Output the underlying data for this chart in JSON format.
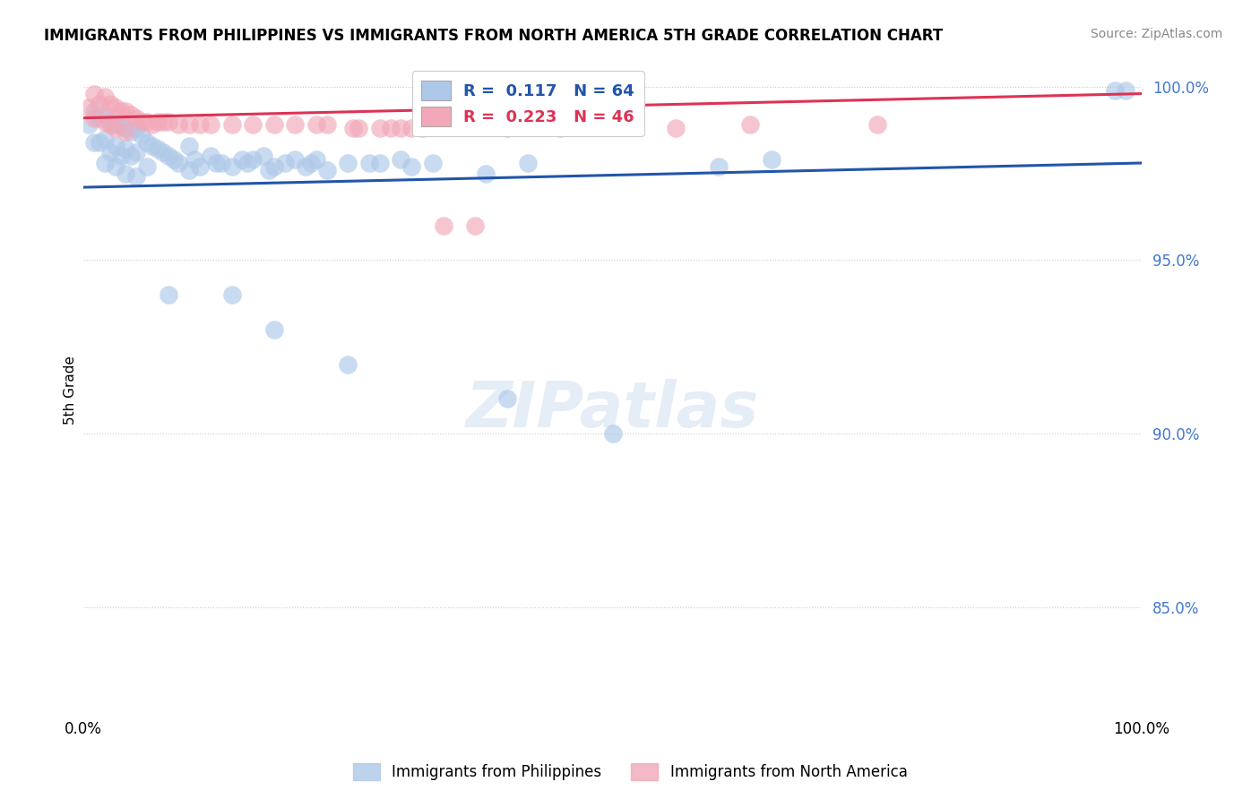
{
  "title": "IMMIGRANTS FROM PHILIPPINES VS IMMIGRANTS FROM NORTH AMERICA 5TH GRADE CORRELATION CHART",
  "source": "Source: ZipAtlas.com",
  "ylabel": "5th Grade",
  "xlim": [
    0.0,
    1.0
  ],
  "ylim": [
    0.82,
    1.005
  ],
  "yticks": [
    0.85,
    0.9,
    0.95,
    1.0
  ],
  "ytick_labels": [
    "85.0%",
    "90.0%",
    "95.0%",
    "100.0%"
  ],
  "blue_R": "0.117",
  "blue_N": "64",
  "pink_R": "0.223",
  "pink_N": "46",
  "blue_color": "#adc8e8",
  "pink_color": "#f2a8b8",
  "blue_line_color": "#2255aa",
  "pink_line_color": "#dd3355",
  "legend_blue_label": "Immigrants from Philippines",
  "legend_pink_label": "Immigrants from North America",
  "blue_scatter_x": [
    0.005,
    0.01,
    0.01,
    0.015,
    0.015,
    0.02,
    0.02,
    0.02,
    0.025,
    0.025,
    0.03,
    0.03,
    0.03,
    0.035,
    0.035,
    0.04,
    0.04,
    0.04,
    0.045,
    0.045,
    0.05,
    0.05,
    0.05,
    0.055,
    0.06,
    0.06,
    0.065,
    0.07,
    0.075,
    0.08,
    0.085,
    0.09,
    0.1,
    0.1,
    0.105,
    0.11,
    0.12,
    0.125,
    0.13,
    0.14,
    0.15,
    0.155,
    0.16,
    0.17,
    0.175,
    0.18,
    0.19,
    0.2,
    0.21,
    0.215,
    0.22,
    0.23,
    0.25,
    0.27,
    0.28,
    0.3,
    0.31,
    0.33,
    0.38,
    0.42,
    0.6,
    0.65,
    0.975,
    0.985
  ],
  "blue_scatter_y": [
    0.989,
    0.993,
    0.984,
    0.991,
    0.984,
    0.992,
    0.985,
    0.978,
    0.99,
    0.981,
    0.989,
    0.983,
    0.977,
    0.989,
    0.98,
    0.988,
    0.982,
    0.975,
    0.987,
    0.98,
    0.988,
    0.981,
    0.974,
    0.986,
    0.984,
    0.977,
    0.983,
    0.982,
    0.981,
    0.98,
    0.979,
    0.978,
    0.983,
    0.976,
    0.979,
    0.977,
    0.98,
    0.978,
    0.978,
    0.977,
    0.979,
    0.978,
    0.979,
    0.98,
    0.976,
    0.977,
    0.978,
    0.979,
    0.977,
    0.978,
    0.979,
    0.976,
    0.978,
    0.978,
    0.978,
    0.979,
    0.977,
    0.978,
    0.975,
    0.978,
    0.977,
    0.979,
    0.999,
    0.999
  ],
  "blue_scatter_y_outliers": [
    0.94,
    0.94,
    0.93,
    0.92,
    0.91,
    0.9
  ],
  "blue_scatter_x_outliers": [
    0.08,
    0.14,
    0.18,
    0.25,
    0.4,
    0.5
  ],
  "pink_scatter_x": [
    0.005,
    0.01,
    0.01,
    0.015,
    0.02,
    0.02,
    0.025,
    0.025,
    0.03,
    0.03,
    0.035,
    0.04,
    0.04,
    0.045,
    0.05,
    0.055,
    0.06,
    0.065,
    0.07,
    0.075,
    0.08,
    0.09,
    0.1,
    0.11,
    0.12,
    0.14,
    0.16,
    0.18,
    0.2,
    0.23,
    0.255,
    0.29,
    0.31,
    0.34,
    0.37,
    0.22,
    0.26,
    0.28,
    0.3,
    0.32,
    0.4,
    0.45,
    0.5,
    0.56,
    0.63,
    0.75
  ],
  "pink_scatter_y": [
    0.994,
    0.998,
    0.991,
    0.995,
    0.997,
    0.99,
    0.995,
    0.989,
    0.994,
    0.988,
    0.993,
    0.993,
    0.987,
    0.992,
    0.991,
    0.99,
    0.99,
    0.989,
    0.99,
    0.99,
    0.99,
    0.989,
    0.989,
    0.989,
    0.989,
    0.989,
    0.989,
    0.989,
    0.989,
    0.989,
    0.988,
    0.988,
    0.988,
    0.96,
    0.96,
    0.989,
    0.988,
    0.988,
    0.988,
    0.988,
    0.988,
    0.988,
    0.989,
    0.988,
    0.989,
    0.989
  ]
}
